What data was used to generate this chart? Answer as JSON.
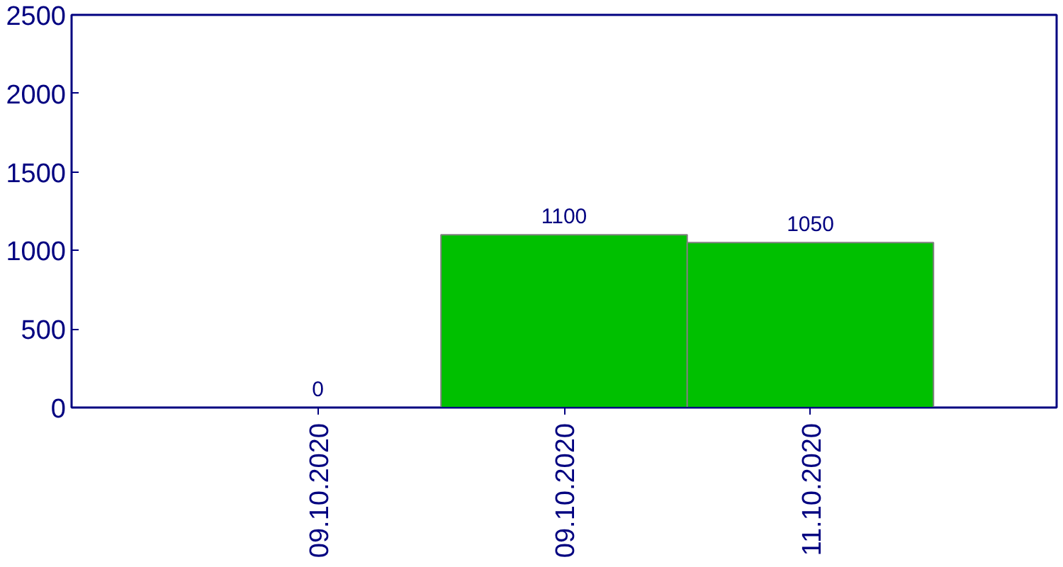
{
  "chart_data": {
    "type": "bar",
    "categories": [
      "09.10.2020",
      "09.10.2020",
      "11.10.2020"
    ],
    "values": [
      0,
      1100,
      1050
    ],
    "color": "#00c000",
    "ylim": [
      0,
      2500
    ],
    "yticks": [
      0,
      500,
      1000,
      1500,
      2000,
      2500
    ],
    "data_labels": true
  }
}
